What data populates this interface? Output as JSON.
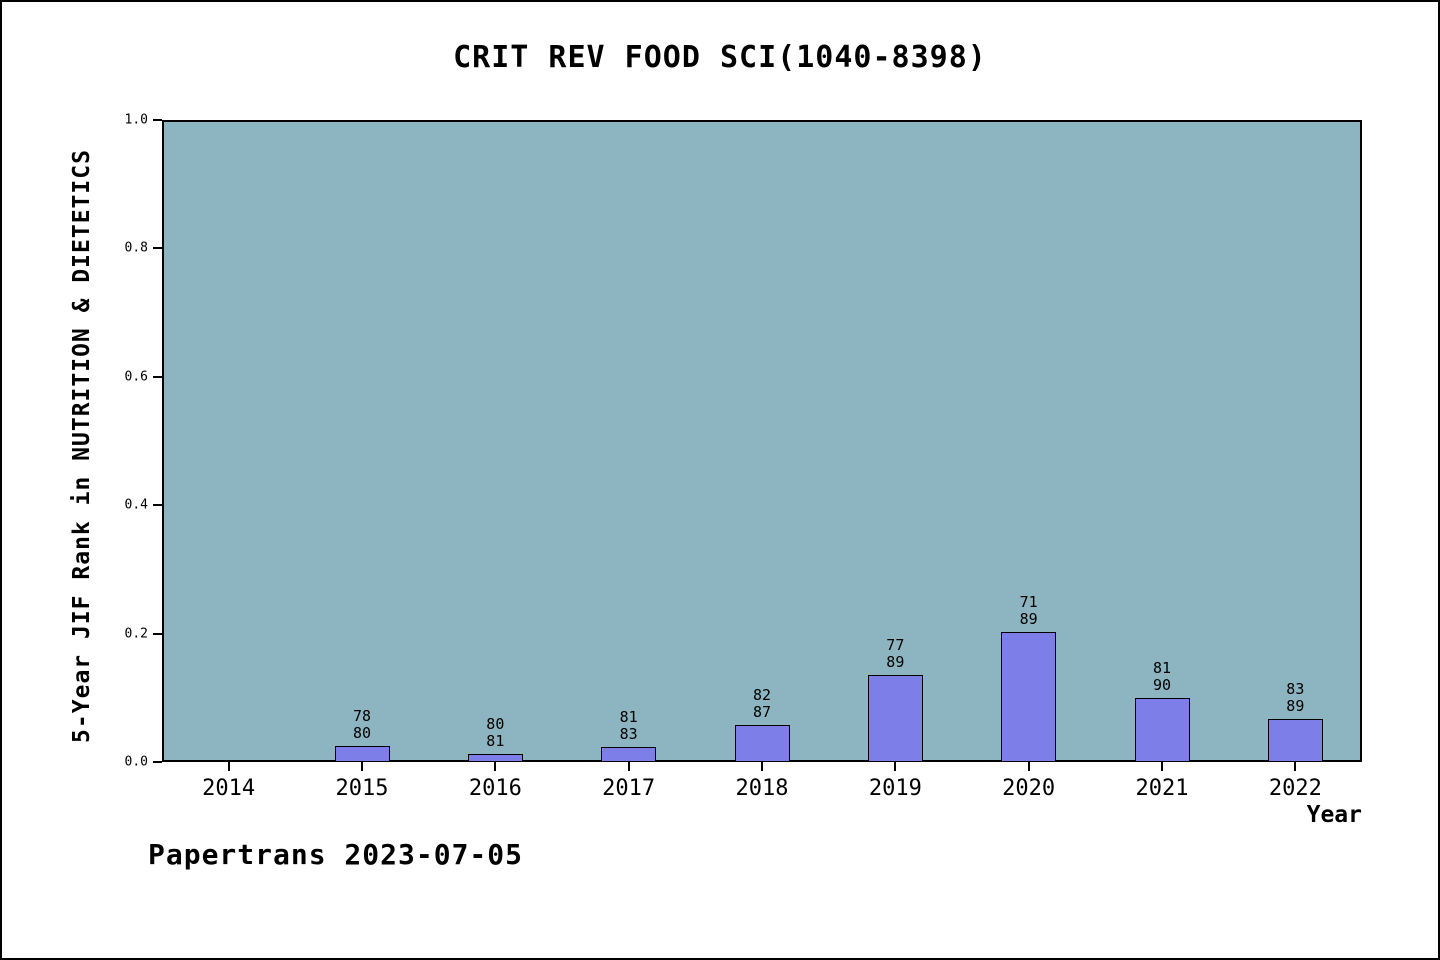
{
  "footer": "Papertrans 2023-07-05",
  "chart_data": {
    "type": "bar",
    "title": "CRIT REV FOOD SCI(1040-8398)",
    "xlabel": "Year",
    "ylabel": "5-Year JIF Rank in NUTRITION & DIETETICS",
    "ylim": [
      0.0,
      1.0
    ],
    "yticks": [
      "0.0",
      "0.2",
      "0.4",
      "0.6",
      "0.8",
      "1.0"
    ],
    "grid": false,
    "legend_position": "none",
    "categories": [
      "2014",
      "2015",
      "2016",
      "2017",
      "2018",
      "2019",
      "2020",
      "2021",
      "2022"
    ],
    "bars": [
      {
        "category": "2014",
        "value": null,
        "rank": null,
        "total": null
      },
      {
        "category": "2015",
        "value": 0.025,
        "rank": "78",
        "total": "80"
      },
      {
        "category": "2016",
        "value": 0.0123,
        "rank": "80",
        "total": "81"
      },
      {
        "category": "2017",
        "value": 0.0241,
        "rank": "81",
        "total": "83"
      },
      {
        "category": "2018",
        "value": 0.0575,
        "rank": "82",
        "total": "87"
      },
      {
        "category": "2019",
        "value": 0.1348,
        "rank": "77",
        "total": "89"
      },
      {
        "category": "2020",
        "value": 0.2022,
        "rank": "71",
        "total": "89"
      },
      {
        "category": "2021",
        "value": 0.1,
        "rank": "81",
        "total": "90"
      },
      {
        "category": "2022",
        "value": 0.0674,
        "rank": "83",
        "total": "89"
      }
    ],
    "colors": {
      "plot_bg": "#8db5c1",
      "bar_fill": "#7e7ee8",
      "bar_border": "#000000",
      "axis": "#000000"
    }
  }
}
